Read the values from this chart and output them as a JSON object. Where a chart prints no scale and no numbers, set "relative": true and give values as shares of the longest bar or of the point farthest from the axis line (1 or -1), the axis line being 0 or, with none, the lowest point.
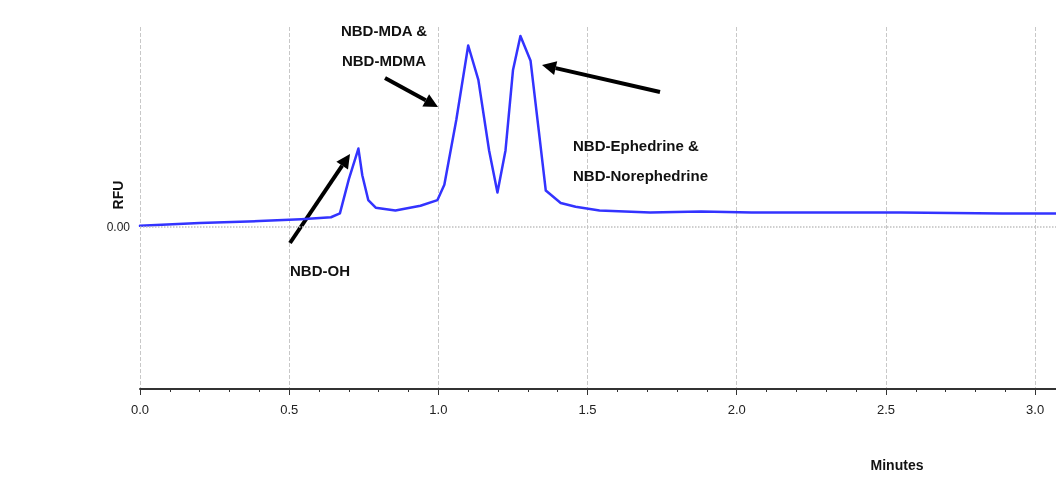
{
  "chart_data": {
    "type": "line",
    "relative": true,
    "xlabel": "Minutes",
    "ylabel": "RFU",
    "x": [
      0,
      0.2,
      0.4,
      0.54,
      0.64,
      0.67,
      0.7,
      0.732,
      0.745,
      0.765,
      0.79,
      0.856,
      0.94,
      0.997,
      1.02,
      1.06,
      1.1,
      1.134,
      1.17,
      1.198,
      1.225,
      1.25,
      1.275,
      1.309,
      1.336,
      1.36,
      1.41,
      1.46,
      1.54,
      1.71,
      1.88,
      2.05,
      2.21,
      2.55,
      2.89,
      3.07
    ],
    "series": [
      {
        "color": "#3333ff",
        "values": [
          0.005,
          0.02,
          0.03,
          0.04,
          0.05,
          0.07,
          0.25,
          0.41,
          0.27,
          0.14,
          0.1,
          0.085,
          0.11,
          0.14,
          0.22,
          0.56,
          0.95,
          0.77,
          0.4,
          0.18,
          0.4,
          0.82,
          1.0,
          0.87,
          0.51,
          0.19,
          0.125,
          0.105,
          0.085,
          0.075,
          0.08,
          0.075,
          0.075,
          0.075,
          0.07,
          0.07
        ]
      }
    ],
    "xlim": [
      0,
      3.07
    ],
    "xticks": [
      {
        "value": 0,
        "label": "0.0"
      },
      {
        "value": 0.5,
        "label": "0.5"
      },
      {
        "value": 1,
        "label": "1.0"
      },
      {
        "value": 1.5,
        "label": "1.5"
      },
      {
        "value": 2,
        "label": "2.0"
      },
      {
        "value": 2.5,
        "label": "2.5"
      },
      {
        "value": 3,
        "label": "3.0"
      }
    ],
    "ref_lines": [
      {
        "axis": "y",
        "value": 0,
        "label": "0.00",
        "color": "#c0c0c0",
        "line_style": "dotted"
      }
    ],
    "grid": "x",
    "marker": "none",
    "line_style": "solid",
    "annotations": [
      "NBD-OH",
      "NBD-MDA &\nNBD-MDMA",
      "NBD-Ephedrine &\nNBD-Norephedrine"
    ]
  }
}
